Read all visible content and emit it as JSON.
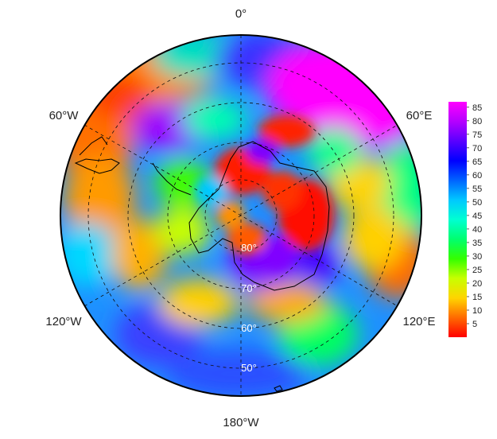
{
  "map": {
    "projection": "south-polar-stereographic",
    "longitude_labels": {
      "top": "0°",
      "upper_left": "60°W",
      "upper_right": "60°E",
      "lower_left": "120°W",
      "lower_right": "120°E",
      "bottom": "180°W"
    },
    "latitude_labels": [
      "80°",
      "70°",
      "60°",
      "50°"
    ],
    "graticule_style": "dashed black",
    "coastlines": "Antarctica and southern South America outline"
  },
  "colorbar": {
    "ticks": [
      "85",
      "80",
      "75",
      "70",
      "65",
      "60",
      "55",
      "50",
      "45",
      "40",
      "35",
      "30",
      "25",
      "20",
      "15",
      "10",
      "5"
    ],
    "min": 0,
    "max": 87,
    "colormap": [
      "#ff0000",
      "#ff6a00",
      "#ffd400",
      "#c8ff00",
      "#34ff00",
      "#00ff6e",
      "#00ffd2",
      "#00c8ff",
      "#0064ff",
      "#0000ff",
      "#5a00ff",
      "#b400ff",
      "#ff00ff"
    ]
  }
}
